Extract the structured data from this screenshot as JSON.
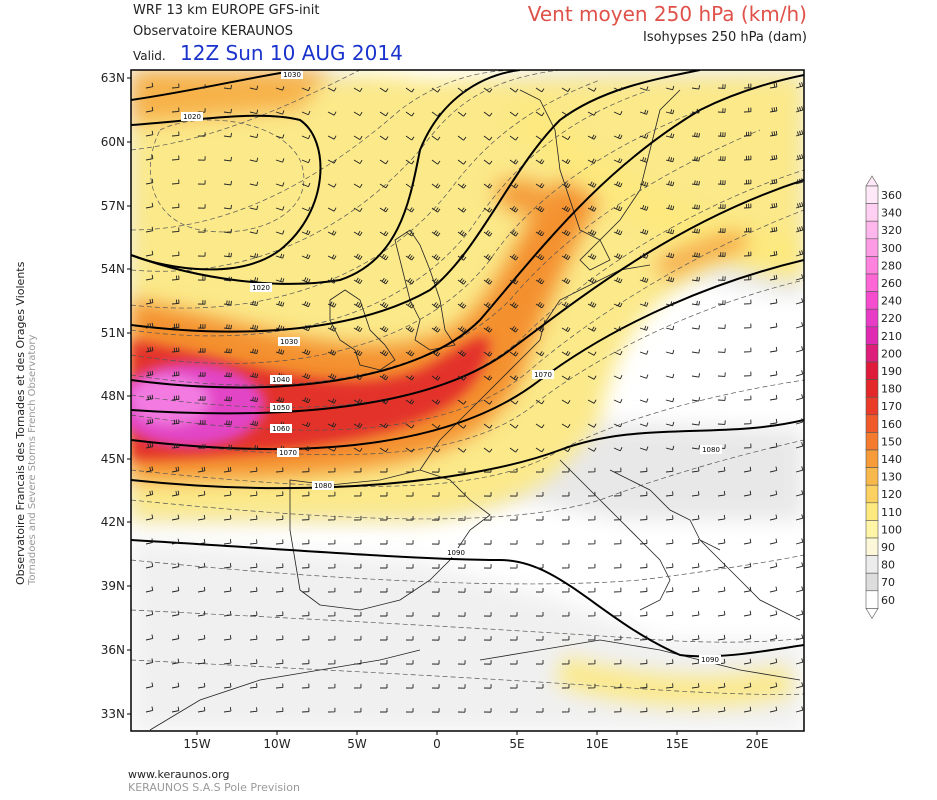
{
  "header": {
    "model": "WRF 13 km EUROPE   GFS-init",
    "observatory": "Observatoire KERAUNOS",
    "valid_label": "Valid.",
    "valid_date": "12Z Sun 10 AUG 2014",
    "variable": "Vent moyen 250 hPa (km/h)",
    "subtitle": "Isohypses 250 hPa (dam)"
  },
  "side_credit": {
    "line1": "Observatoire Francais des Tornades et des Orages Violents",
    "line2": "Tornadoes and Severe Storms French Observatory"
  },
  "footer": {
    "url": "www.keraunos.org",
    "company": "KERAUNOS S.A.S Pole Prevision"
  },
  "map": {
    "lat_labels": [
      "63N",
      "60N",
      "57N",
      "54N",
      "51N",
      "48N",
      "45N",
      "42N",
      "39N",
      "36N",
      "33N"
    ],
    "lon_labels": [
      "15W",
      "10W",
      "5W",
      "0",
      "5E",
      "10E",
      "15E",
      "20E"
    ],
    "isohypse_labels": [
      "1030",
      "1020",
      "1020",
      "1030",
      "1040",
      "1050",
      "1060",
      "1070",
      "1070",
      "1080",
      "1080",
      "1090",
      "1090"
    ]
  },
  "colorbar": {
    "ticks": [
      "360",
      "340",
      "320",
      "300",
      "280",
      "260",
      "240",
      "220",
      "210",
      "200",
      "190",
      "180",
      "170",
      "160",
      "150",
      "140",
      "130",
      "120",
      "110",
      "100",
      "90",
      "80",
      "70",
      "60"
    ],
    "colors": [
      "#ffe8f8",
      "#ffd0f2",
      "#ffb6ec",
      "#ff9ce5",
      "#ff82de",
      "#ff66d6",
      "#f64ccf",
      "#e83cc6",
      "#e02ab4",
      "#dd1e7a",
      "#e01a3a",
      "#e4282a",
      "#ea3a28",
      "#f05a2a",
      "#f47a2e",
      "#f79c38",
      "#f9b84c",
      "#fbd262",
      "#fde97e",
      "#fef6a6",
      "#fbf7d8",
      "#ececec",
      "#dddddd",
      "#ffffff"
    ]
  }
}
